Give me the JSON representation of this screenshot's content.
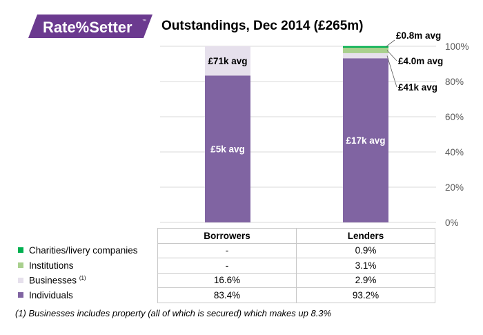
{
  "logo": {
    "text": "Rate%Setter",
    "tm": "™"
  },
  "chart_data": {
    "type": "bar",
    "stacked": true,
    "title": "Outstandings,  Dec 2014 (£265m)",
    "categories": [
      "Borrowers",
      "Lenders"
    ],
    "y_axis": {
      "min": 0,
      "max": 100,
      "ticks": [
        "0%",
        "20%",
        "40%",
        "60%",
        "80%",
        "100%"
      ],
      "position": "right"
    },
    "series": [
      {
        "name": "Individuals",
        "color": "#8064a2",
        "values": [
          83.4,
          93.2
        ],
        "labels": [
          "83.4%",
          "93.2%"
        ]
      },
      {
        "name": "Businesses",
        "note": "(1)",
        "color": "#e6e0ec",
        "values": [
          16.6,
          2.9
        ],
        "labels": [
          "16.6%",
          "2.9%"
        ]
      },
      {
        "name": "Institutions",
        "color": "#a9d08e",
        "values": [
          0,
          3.1
        ],
        "labels": [
          "-",
          "3.1%"
        ]
      },
      {
        "name": "Charities/livery companies",
        "color": "#00b050",
        "values": [
          0,
          0.9
        ],
        "labels": [
          "-",
          "0.9%"
        ]
      }
    ],
    "annotations": {
      "borrowers_individuals": "£5k avg",
      "borrowers_businesses": "£71k avg",
      "lenders_individuals": "£17k avg",
      "lenders_businesses": "£41k avg",
      "lenders_institutions": "£4.0m avg",
      "lenders_charities": "£0.8m avg"
    }
  },
  "footnote": "(1) Businesses includes property (all of which is secured) which makes up 8.3%"
}
